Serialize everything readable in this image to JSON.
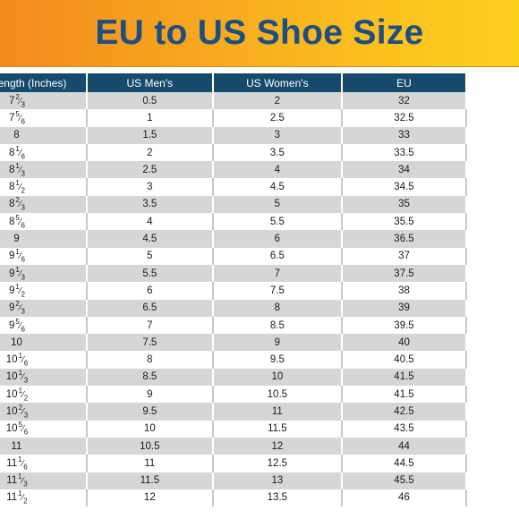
{
  "title": "EU to US Shoe Size",
  "headers": [
    "Foot Length (Inches)",
    "US Men's",
    "US Women's",
    "EU"
  ],
  "rows": [
    {
      "length": {
        "whole": "7",
        "num": "2",
        "den": "3"
      },
      "men": "0.5",
      "women": "2",
      "eu": "32"
    },
    {
      "length": {
        "whole": "7",
        "num": "5",
        "den": "6"
      },
      "men": "1",
      "women": "2.5",
      "eu": "32.5"
    },
    {
      "length": {
        "whole": "8"
      },
      "men": "1.5",
      "women": "3",
      "eu": "33"
    },
    {
      "length": {
        "whole": "8",
        "num": "1",
        "den": "6"
      },
      "men": "2",
      "women": "3.5",
      "eu": "33.5"
    },
    {
      "length": {
        "whole": "8",
        "num": "1",
        "den": "3"
      },
      "men": "2.5",
      "women": "4",
      "eu": "34"
    },
    {
      "length": {
        "whole": "8",
        "num": "1",
        "den": "2"
      },
      "men": "3",
      "women": "4.5",
      "eu": "34.5"
    },
    {
      "length": {
        "whole": "8",
        "num": "2",
        "den": "3"
      },
      "men": "3.5",
      "women": "5",
      "eu": "35"
    },
    {
      "length": {
        "whole": "8",
        "num": "5",
        "den": "6"
      },
      "men": "4",
      "women": "5.5",
      "eu": "35.5"
    },
    {
      "length": {
        "whole": "9"
      },
      "men": "4.5",
      "women": "6",
      "eu": "36.5"
    },
    {
      "length": {
        "whole": "9",
        "num": "1",
        "den": "6"
      },
      "men": "5",
      "women": "6.5",
      "eu": "37"
    },
    {
      "length": {
        "whole": "9",
        "num": "1",
        "den": "3"
      },
      "men": "5.5",
      "women": "7",
      "eu": "37.5"
    },
    {
      "length": {
        "whole": "9",
        "num": "1",
        "den": "2"
      },
      "men": "6",
      "women": "7.5",
      "eu": "38"
    },
    {
      "length": {
        "whole": "9",
        "num": "2",
        "den": "3"
      },
      "men": "6.5",
      "women": "8",
      "eu": "39"
    },
    {
      "length": {
        "whole": "9",
        "num": "5",
        "den": "6"
      },
      "men": "7",
      "women": "8.5",
      "eu": "39.5"
    },
    {
      "length": {
        "whole": "10"
      },
      "men": "7.5",
      "women": "9",
      "eu": "40"
    },
    {
      "length": {
        "whole": "10",
        "num": "1",
        "den": "6"
      },
      "men": "8",
      "women": "9.5",
      "eu": "40.5"
    },
    {
      "length": {
        "whole": "10",
        "num": "1",
        "den": "3"
      },
      "men": "8.5",
      "women": "10",
      "eu": "41.5"
    },
    {
      "length": {
        "whole": "10",
        "num": "1",
        "den": "2"
      },
      "men": "9",
      "women": "10.5",
      "eu": "41.5"
    },
    {
      "length": {
        "whole": "10",
        "num": "2",
        "den": "3"
      },
      "men": "9.5",
      "women": "11",
      "eu": "42.5"
    },
    {
      "length": {
        "whole": "10",
        "num": "5",
        "den": "6"
      },
      "men": "10",
      "women": "11.5",
      "eu": "43.5"
    },
    {
      "length": {
        "whole": "11"
      },
      "men": "10.5",
      "women": "12",
      "eu": "44"
    },
    {
      "length": {
        "whole": "11",
        "num": "1",
        "den": "6"
      },
      "men": "11",
      "women": "12.5",
      "eu": "44.5"
    },
    {
      "length": {
        "whole": "11",
        "num": "1",
        "den": "3"
      },
      "men": "11.5",
      "women": "13",
      "eu": "45.5"
    },
    {
      "length": {
        "whole": "11",
        "num": "1",
        "den": "2"
      },
      "men": "12",
      "women": "13.5",
      "eu": "46"
    }
  ]
}
